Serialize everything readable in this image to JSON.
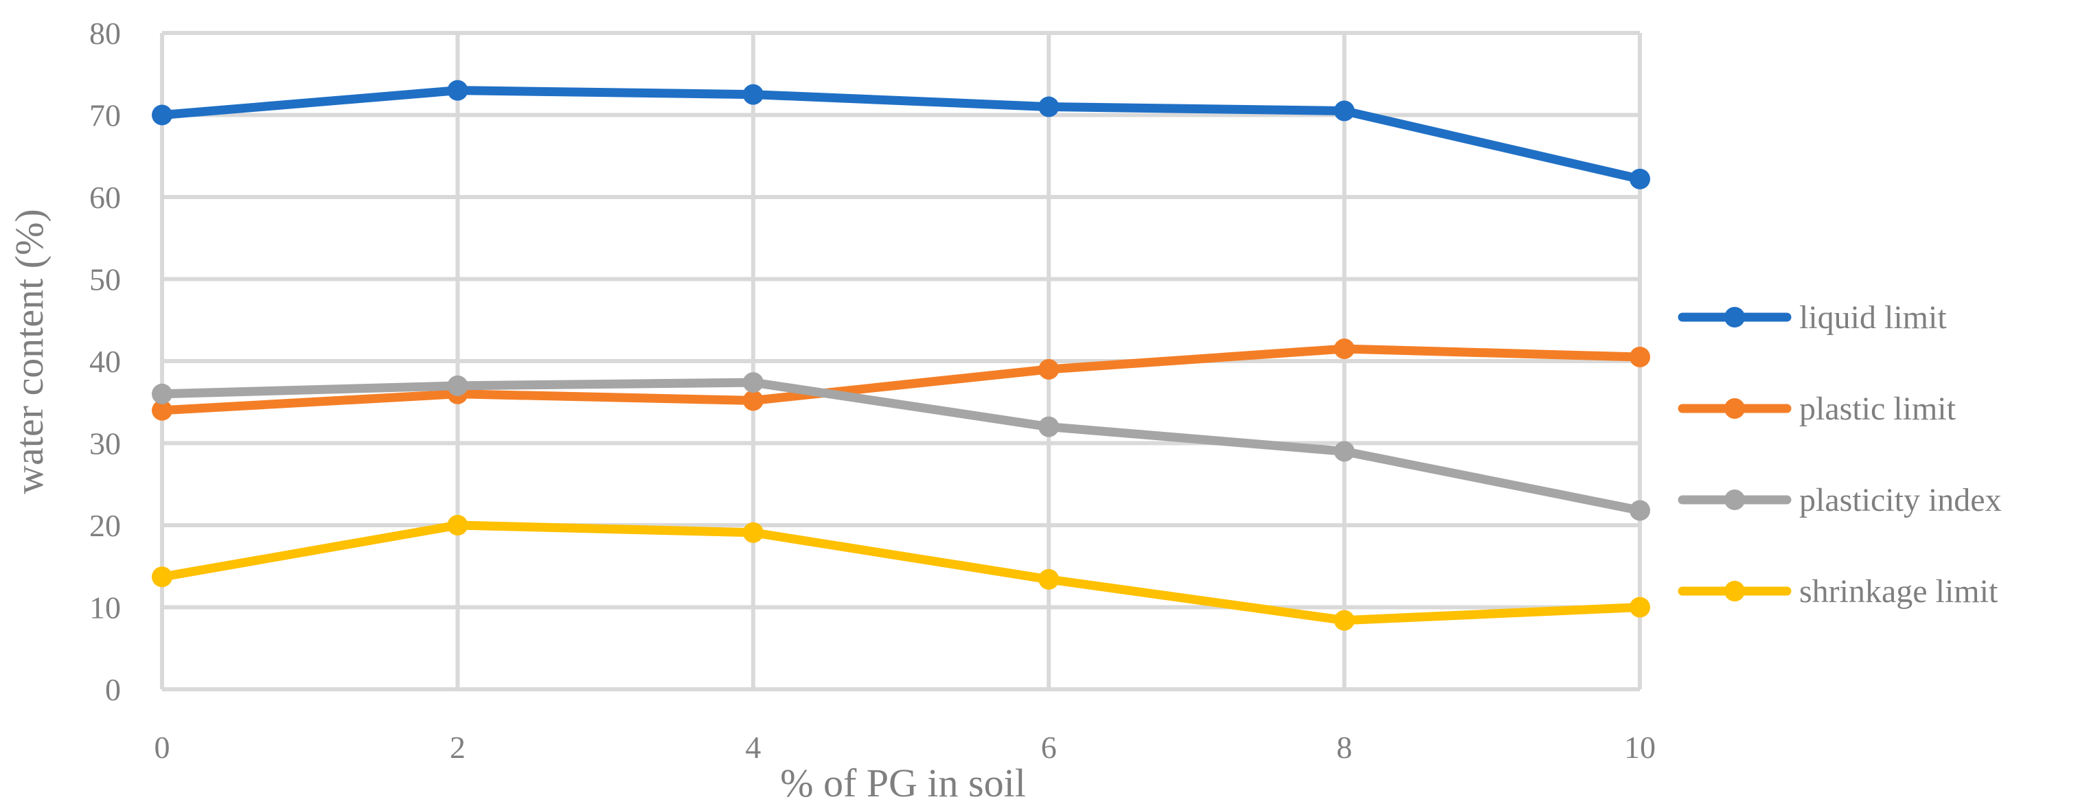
{
  "chart_data": {
    "type": "line",
    "title": "",
    "xlabel": "% of PG in soil",
    "ylabel": "water content (%)",
    "x": [
      0,
      2,
      4,
      6,
      8,
      10
    ],
    "x_ticks": [
      "0",
      "2",
      "4",
      "6",
      "8",
      "10"
    ],
    "y_ticks": [
      "0",
      "10",
      "20",
      "30",
      "40",
      "50",
      "60",
      "70",
      "80"
    ],
    "xlim": [
      0,
      10
    ],
    "ylim": [
      0,
      80
    ],
    "grid": true,
    "legend_position": "right",
    "series": [
      {
        "name": "liquid limit",
        "color": "#1f6fc5",
        "values": [
          70,
          73,
          72.5,
          71,
          70.5,
          62.2
        ]
      },
      {
        "name": "plastic limit",
        "color": "#f47e26",
        "values": [
          34,
          36,
          35.2,
          39,
          41.5,
          40.5
        ]
      },
      {
        "name": "plasticity index",
        "color": "#a5a5a5",
        "values": [
          36,
          37,
          37.4,
          32,
          29,
          21.8
        ]
      },
      {
        "name": "shrinkage limit",
        "color": "#ffc000",
        "values": [
          13.7,
          20,
          19.1,
          13.4,
          8.4,
          10
        ]
      }
    ]
  }
}
